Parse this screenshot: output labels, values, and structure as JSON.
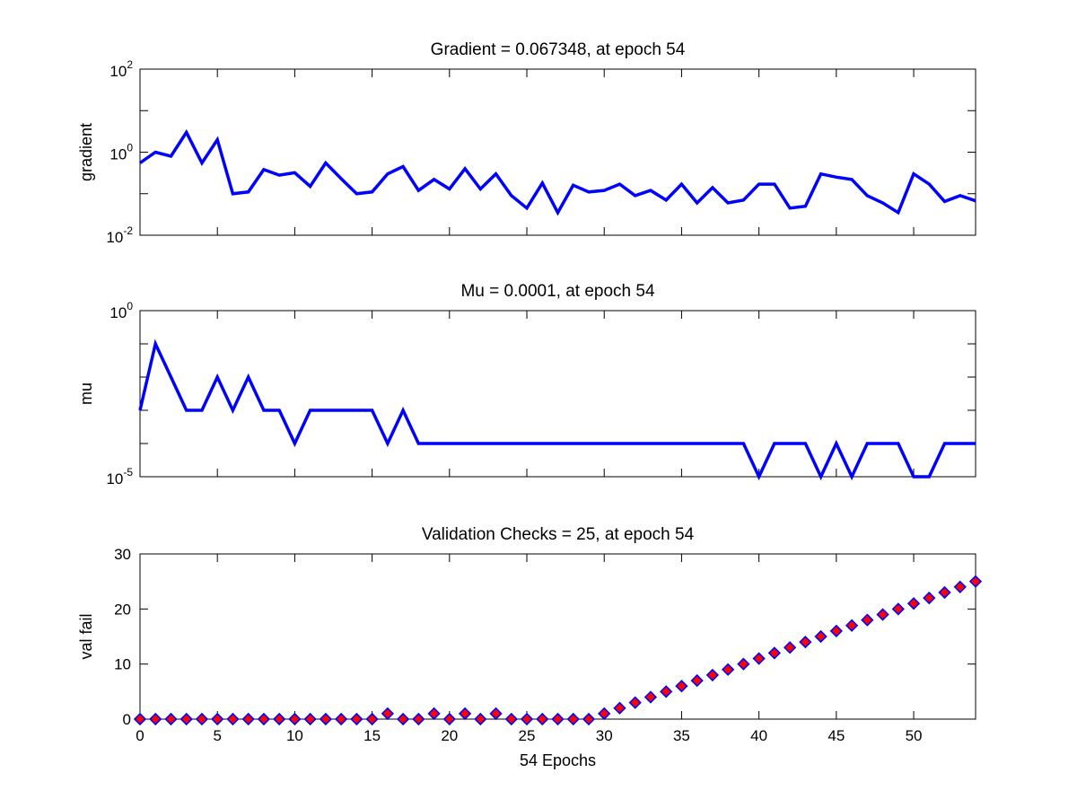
{
  "colors": {
    "line": "#0000ff",
    "marker_fill": "#ff0000",
    "marker_edge": "#0000ff",
    "axes": "#000000"
  },
  "chart_data": [
    {
      "type": "line",
      "title": "Gradient = 0.067348, at epoch 54",
      "xlabel": "",
      "ylabel": "gradient",
      "yscale": "log",
      "xlim": [
        0,
        54
      ],
      "ylim": [
        0.01,
        100
      ],
      "ytick_labels": [
        {
          "value": 0.01,
          "base": "10",
          "exp": "-2"
        },
        {
          "value": 1,
          "base": "10",
          "exp": "0"
        },
        {
          "value": 100,
          "base": "10",
          "exp": "2"
        }
      ],
      "x": [
        0,
        1,
        2,
        3,
        4,
        5,
        6,
        7,
        8,
        9,
        10,
        11,
        12,
        13,
        14,
        15,
        16,
        17,
        18,
        19,
        20,
        21,
        22,
        23,
        24,
        25,
        26,
        27,
        28,
        29,
        30,
        31,
        32,
        33,
        34,
        35,
        36,
        37,
        38,
        39,
        40,
        41,
        42,
        43,
        44,
        45,
        46,
        47,
        48,
        49,
        50,
        51,
        52,
        53,
        54
      ],
      "values": [
        0.55,
        1.0,
        0.8,
        3.0,
        0.55,
        2.0,
        0.1,
        0.11,
        0.38,
        0.28,
        0.32,
        0.15,
        0.55,
        0.23,
        0.1,
        0.11,
        0.3,
        0.45,
        0.12,
        0.22,
        0.13,
        0.4,
        0.13,
        0.3,
        0.09,
        0.045,
        0.18,
        0.035,
        0.16,
        0.11,
        0.12,
        0.17,
        0.09,
        0.12,
        0.07,
        0.17,
        0.06,
        0.14,
        0.06,
        0.07,
        0.17,
        0.17,
        0.045,
        0.05,
        0.3,
        0.25,
        0.22,
        0.09,
        0.06,
        0.035,
        0.3,
        0.17,
        0.065,
        0.09,
        0.067348
      ]
    },
    {
      "type": "line",
      "title": "Mu = 0.0001, at epoch 54",
      "xlabel": "",
      "ylabel": "mu",
      "yscale": "log",
      "xlim": [
        0,
        54
      ],
      "ylim": [
        1e-05,
        1
      ],
      "ytick_labels": [
        {
          "value": 1e-05,
          "base": "10",
          "exp": "-5"
        },
        {
          "value": 1,
          "base": "10",
          "exp": "0"
        }
      ],
      "x": [
        0,
        1,
        2,
        3,
        4,
        5,
        6,
        7,
        8,
        9,
        10,
        11,
        12,
        13,
        14,
        15,
        16,
        17,
        18,
        19,
        20,
        21,
        22,
        23,
        24,
        25,
        26,
        27,
        28,
        29,
        30,
        31,
        32,
        33,
        34,
        35,
        36,
        37,
        38,
        39,
        40,
        41,
        42,
        43,
        44,
        45,
        46,
        47,
        48,
        49,
        50,
        51,
        52,
        53,
        54
      ],
      "values": [
        0.001,
        0.1,
        0.01,
        0.001,
        0.001,
        0.01,
        0.001,
        0.01,
        0.001,
        0.001,
        0.0001,
        0.001,
        0.001,
        0.001,
        0.001,
        0.001,
        0.0001,
        0.001,
        0.0001,
        0.0001,
        0.0001,
        0.0001,
        0.0001,
        0.0001,
        0.0001,
        0.0001,
        0.0001,
        0.0001,
        0.0001,
        0.0001,
        0.0001,
        0.0001,
        0.0001,
        0.0001,
        0.0001,
        0.0001,
        0.0001,
        0.0001,
        0.0001,
        0.0001,
        1e-05,
        0.0001,
        0.0001,
        0.0001,
        1e-05,
        0.0001,
        1e-05,
        0.0001,
        0.0001,
        0.0001,
        1e-05,
        1e-05,
        0.0001,
        0.0001,
        0.0001
      ]
    },
    {
      "type": "scatter",
      "title": "Validation Checks = 25, at epoch 54",
      "xlabel": "54 Epochs",
      "ylabel": "val fail",
      "marker": "diamond",
      "xlim": [
        0,
        54
      ],
      "ylim": [
        0,
        30
      ],
      "xticks": [
        0,
        5,
        10,
        15,
        20,
        25,
        30,
        35,
        40,
        45,
        50
      ],
      "yticks": [
        0,
        10,
        20,
        30
      ],
      "x": [
        0,
        1,
        2,
        3,
        4,
        5,
        6,
        7,
        8,
        9,
        10,
        11,
        12,
        13,
        14,
        15,
        16,
        17,
        18,
        19,
        20,
        21,
        22,
        23,
        24,
        25,
        26,
        27,
        28,
        29,
        30,
        31,
        32,
        33,
        34,
        35,
        36,
        37,
        38,
        39,
        40,
        41,
        42,
        43,
        44,
        45,
        46,
        47,
        48,
        49,
        50,
        51,
        52,
        53,
        54
      ],
      "values": [
        0,
        0,
        0,
        0,
        0,
        0,
        0,
        0,
        0,
        0,
        0,
        0,
        0,
        0,
        0,
        0,
        1,
        0,
        0,
        1,
        0,
        1,
        0,
        1,
        0,
        0,
        0,
        0,
        0,
        0,
        1,
        2,
        3,
        4,
        5,
        6,
        7,
        8,
        9,
        10,
        11,
        12,
        13,
        14,
        15,
        16,
        17,
        18,
        19,
        20,
        21,
        22,
        23,
        24,
        25
      ]
    }
  ]
}
